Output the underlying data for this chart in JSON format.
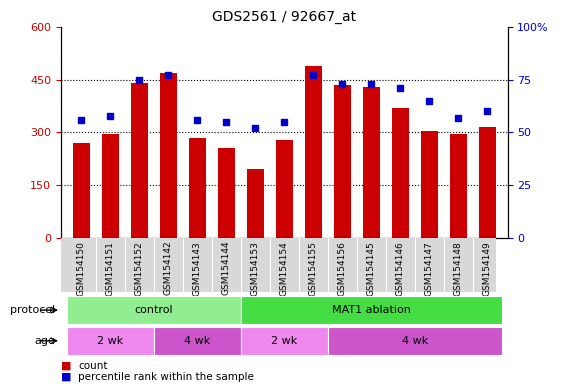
{
  "title": "GDS2561 / 92667_at",
  "samples": [
    "GSM154150",
    "GSM154151",
    "GSM154152",
    "GSM154142",
    "GSM154143",
    "GSM154144",
    "GSM154153",
    "GSM154154",
    "GSM154155",
    "GSM154156",
    "GSM154145",
    "GSM154146",
    "GSM154147",
    "GSM154148",
    "GSM154149"
  ],
  "counts": [
    270,
    295,
    440,
    468,
    285,
    255,
    195,
    280,
    490,
    435,
    430,
    370,
    305,
    295,
    315
  ],
  "percentiles": [
    56,
    58,
    75,
    77,
    56,
    55,
    52,
    55,
    77,
    73,
    73,
    71,
    65,
    57,
    60
  ],
  "ylim_left": [
    0,
    600
  ],
  "ylim_right": [
    0,
    100
  ],
  "yticks_left": [
    0,
    150,
    300,
    450,
    600
  ],
  "yticks_right": [
    0,
    25,
    50,
    75,
    100
  ],
  "bar_color": "#cc0000",
  "dot_color": "#0000cc",
  "protocol_groups": [
    {
      "label": "control",
      "start": 0,
      "end": 6,
      "color": "#90ee90"
    },
    {
      "label": "MAT1 ablation",
      "start": 6,
      "end": 15,
      "color": "#44dd44"
    }
  ],
  "age_groups": [
    {
      "label": "2 wk",
      "start": 0,
      "end": 3,
      "color": "#ee88ee"
    },
    {
      "label": "4 wk",
      "start": 3,
      "end": 6,
      "color": "#cc55cc"
    },
    {
      "label": "2 wk",
      "start": 6,
      "end": 9,
      "color": "#ee88ee"
    },
    {
      "label": "4 wk",
      "start": 9,
      "end": 15,
      "color": "#cc55cc"
    }
  ],
  "legend_count_color": "#cc0000",
  "legend_dot_color": "#0000cc",
  "tick_label_color_left": "#cc0000",
  "tick_label_color_right": "#0000cc",
  "plot_bg": "#ffffff",
  "xtick_bg": "#d8d8d8"
}
